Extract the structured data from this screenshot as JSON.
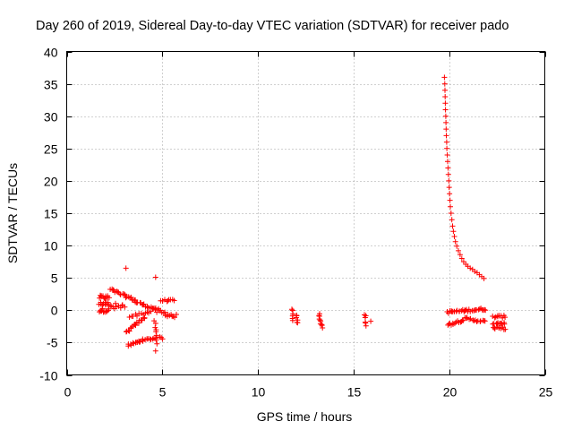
{
  "chart_data": {
    "type": "scatter",
    "title": "Day 260 of 2019, Sidereal Day-to-day VTEC variation (SDTVAR) for receiver pado",
    "xlabel": "GPS time / hours",
    "ylabel": "SDTVAR / TECUs",
    "xlim": [
      0,
      25
    ],
    "ylim": [
      -10,
      40
    ],
    "xticks": [
      0,
      5,
      10,
      15,
      20,
      25
    ],
    "yticks": [
      -10,
      -5,
      0,
      5,
      10,
      15,
      20,
      25,
      30,
      35,
      40
    ],
    "grid": true,
    "marker": "+",
    "color": "#ff0000",
    "series": [
      {
        "name": "SDTVAR",
        "segments": [
          {
            "x": [
              1.7,
              2.2
            ],
            "y": [
              2.0,
              2.0
            ],
            "n": 12,
            "jitter": 0.3
          },
          {
            "x": [
              1.7,
              2.2
            ],
            "y": [
              1.0,
              1.0
            ],
            "n": 12,
            "jitter": 0.3
          },
          {
            "x": [
              1.7,
              2.2
            ],
            "y": [
              0.0,
              0.0
            ],
            "n": 12,
            "jitter": 0.3
          },
          {
            "x": [
              2.3,
              3.0
            ],
            "y": [
              0.5,
              0.5
            ],
            "n": 12,
            "jitter": 0.6
          },
          {
            "x": [
              2.3,
              3.6
            ],
            "y": [
              3.2,
              1.5
            ],
            "n": 22,
            "jitter": 0.2
          },
          {
            "x": [
              3.6,
              4.6
            ],
            "y": [
              1.3,
              0.2
            ],
            "n": 16,
            "jitter": 0.2
          },
          {
            "x": [
              4.6,
              5.7
            ],
            "y": [
              0.0,
              -1.0
            ],
            "n": 18,
            "jitter": 0.4
          },
          {
            "x": [
              4.9,
              5.6
            ],
            "y": [
              1.5,
              1.5
            ],
            "n": 10,
            "jitter": 0.15
          },
          {
            "x": [
              3.1,
              4.1
            ],
            "y": [
              -3.5,
              -1.0
            ],
            "n": 18,
            "jitter": 0.2
          },
          {
            "x": [
              3.3,
              4.4
            ],
            "y": [
              -1.0,
              -0.2
            ],
            "n": 12,
            "jitter": 0.2
          },
          {
            "x": [
              3.2,
              4.0
            ],
            "y": [
              -5.5,
              -4.6
            ],
            "n": 14,
            "jitter": 0.2
          },
          {
            "x": [
              4.0,
              4.7
            ],
            "y": [
              -4.6,
              -4.3
            ],
            "n": 10,
            "jitter": 0.15
          },
          {
            "x": [
              4.6,
              4.7
            ],
            "y": [
              -1.5,
              -5.0
            ],
            "n": 8,
            "jitter": 0.2
          },
          {
            "x": [
              4.9,
              5.0
            ],
            "y": [
              -4.2,
              -4.4
            ],
            "n": 3,
            "jitter": 0.1
          },
          {
            "x": [
              11.8,
              11.85
            ],
            "y": [
              0.3,
              -1.5
            ],
            "n": 6,
            "jitter": 0.2
          },
          {
            "x": [
              12.0,
              12.1
            ],
            "y": [
              -0.7,
              -2.0
            ],
            "n": 6,
            "jitter": 0.2
          },
          {
            "x": [
              13.2,
              13.35
            ],
            "y": [
              -0.6,
              -2.6
            ],
            "n": 10,
            "jitter": 0.2
          },
          {
            "x": [
              15.6,
              15.65
            ],
            "y": [
              -0.6,
              -2.4
            ],
            "n": 6,
            "jitter": 0.2
          },
          {
            "x": [
              19.9,
              21.9
            ],
            "y": [
              -0.3,
              0.2
            ],
            "n": 32,
            "jitter": 0.2
          },
          {
            "x": [
              19.9,
              20.9
            ],
            "y": [
              -2.3,
              -1.3
            ],
            "n": 16,
            "jitter": 0.2
          },
          {
            "x": [
              20.9,
              21.9
            ],
            "y": [
              -1.3,
              -1.8
            ],
            "n": 14,
            "jitter": 0.2
          },
          {
            "x": [
              22.3,
              22.9
            ],
            "y": [
              -1.0,
              -1.0
            ],
            "n": 10,
            "jitter": 0.2
          },
          {
            "x": [
              22.3,
              22.9
            ],
            "y": [
              -2.0,
              -2.0
            ],
            "n": 10,
            "jitter": 0.2
          },
          {
            "x": [
              22.3,
              22.9
            ],
            "y": [
              -2.8,
              -2.8
            ],
            "n": 10,
            "jitter": 0.2
          }
        ],
        "points": [
          [
            3.1,
            6.5
          ],
          [
            4.65,
            5.1
          ],
          [
            4.65,
            -6.3
          ],
          [
            15.9,
            -1.7
          ],
          [
            19.75,
            36.0
          ],
          [
            19.77,
            35.0
          ],
          [
            19.78,
            34.0
          ],
          [
            19.79,
            33.0
          ],
          [
            19.8,
            32.0
          ],
          [
            19.81,
            31.0
          ],
          [
            19.82,
            30.0
          ],
          [
            19.83,
            29.0
          ],
          [
            19.84,
            28.0
          ],
          [
            19.85,
            27.0
          ],
          [
            19.87,
            26.0
          ],
          [
            19.88,
            25.0
          ],
          [
            19.9,
            24.0
          ],
          [
            19.92,
            23.0
          ],
          [
            19.94,
            22.0
          ],
          [
            19.96,
            21.0
          ],
          [
            19.98,
            20.0
          ],
          [
            20.0,
            19.0
          ],
          [
            20.02,
            18.0
          ],
          [
            20.04,
            17.0
          ],
          [
            20.06,
            16.0
          ],
          [
            20.1,
            15.0
          ],
          [
            20.14,
            14.0
          ],
          [
            20.18,
            13.0
          ],
          [
            20.22,
            12.2
          ],
          [
            20.27,
            11.4
          ],
          [
            20.33,
            10.6
          ],
          [
            20.4,
            9.9
          ],
          [
            20.48,
            9.2
          ],
          [
            20.57,
            8.6
          ],
          [
            20.66,
            8.0
          ],
          [
            20.76,
            7.5
          ],
          [
            20.87,
            7.1
          ],
          [
            20.98,
            6.8
          ],
          [
            21.1,
            6.5
          ],
          [
            21.22,
            6.3
          ],
          [
            21.34,
            6.0
          ],
          [
            21.46,
            5.8
          ],
          [
            21.58,
            5.5
          ],
          [
            21.7,
            5.2
          ],
          [
            21.82,
            4.9
          ]
        ]
      }
    ]
  }
}
